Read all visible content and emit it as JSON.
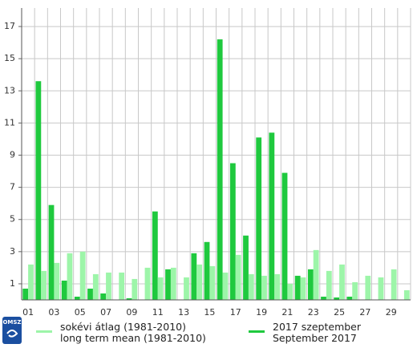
{
  "chart_data": {
    "type": "bar",
    "categories": [
      "01",
      null,
      "03",
      null,
      "05",
      null,
      "07",
      null,
      "09",
      null,
      "11",
      null,
      "13",
      null,
      "15",
      null,
      "17",
      null,
      "19",
      null,
      "21",
      null,
      "23",
      null,
      "25",
      null,
      "27",
      null,
      "29",
      null
    ],
    "series": [
      {
        "name": "sokévi átlag (1981-2010)\nlong term mean (1981-2010)",
        "color": "#9df5a9",
        "values": [
          2.2,
          1.8,
          2.3,
          2.9,
          3.0,
          1.6,
          1.7,
          1.7,
          1.3,
          2.0,
          1.4,
          2.0,
          1.4,
          2.2,
          2.1,
          1.7,
          2.8,
          1.6,
          1.5,
          1.6,
          1.0,
          1.4,
          3.1,
          1.8,
          2.2,
          1.1,
          1.5,
          1.4,
          1.9,
          0.6
        ]
      },
      {
        "name": "2017 szeptember\nSeptember 2017",
        "color": "#1fc93e",
        "values": [
          0.7,
          13.6,
          5.9,
          1.2,
          0.2,
          0.7,
          0.4,
          0,
          0.1,
          0,
          5.5,
          1.9,
          0,
          2.9,
          3.6,
          16.2,
          8.5,
          4.0,
          10.1,
          10.4,
          7.9,
          1.5,
          1.9,
          0.2,
          0.15,
          0.2,
          0,
          0,
          0,
          0
        ]
      }
    ],
    "ylim": [
      0,
      18.15
    ],
    "yticks": [
      1,
      3,
      5,
      7,
      9,
      11,
      13,
      15,
      17
    ],
    "grid": true,
    "logo": "OMSZ"
  }
}
